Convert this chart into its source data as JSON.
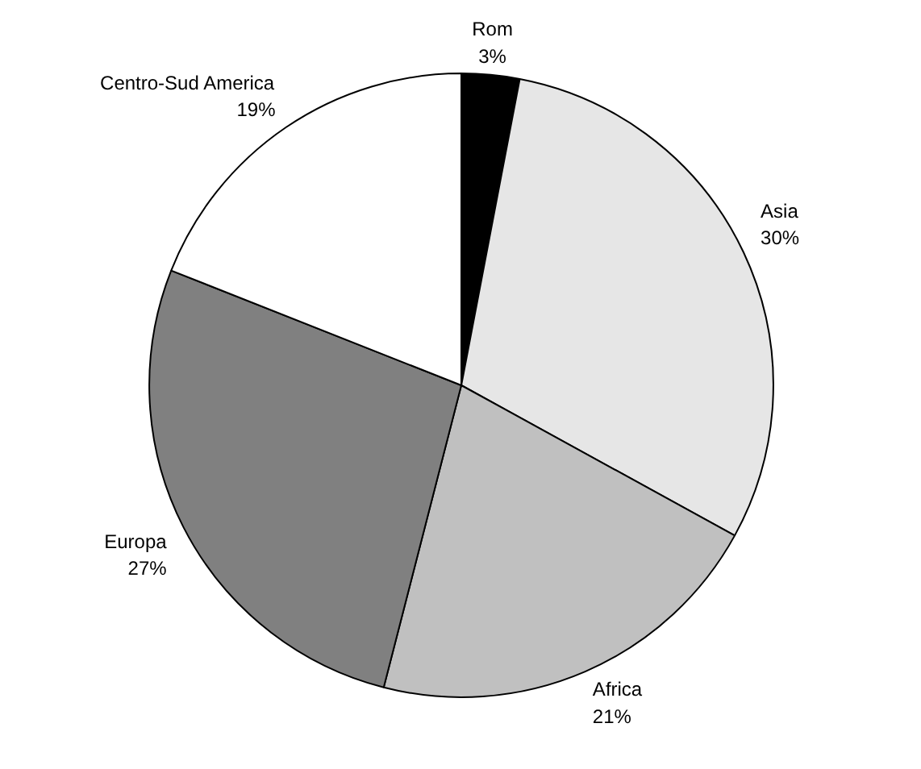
{
  "chart_data": {
    "type": "pie",
    "categories": [
      "Rom",
      "Asia",
      "Africa",
      "Europa",
      "Centro-Sud America"
    ],
    "values": [
      3,
      30,
      21,
      27,
      19
    ],
    "value_labels": [
      "3%",
      "30%",
      "21%",
      "27%",
      "19%"
    ],
    "colors": [
      "#000000",
      "#e6e6e6",
      "#c0c0c0",
      "#808080",
      "#ffffff"
    ]
  }
}
